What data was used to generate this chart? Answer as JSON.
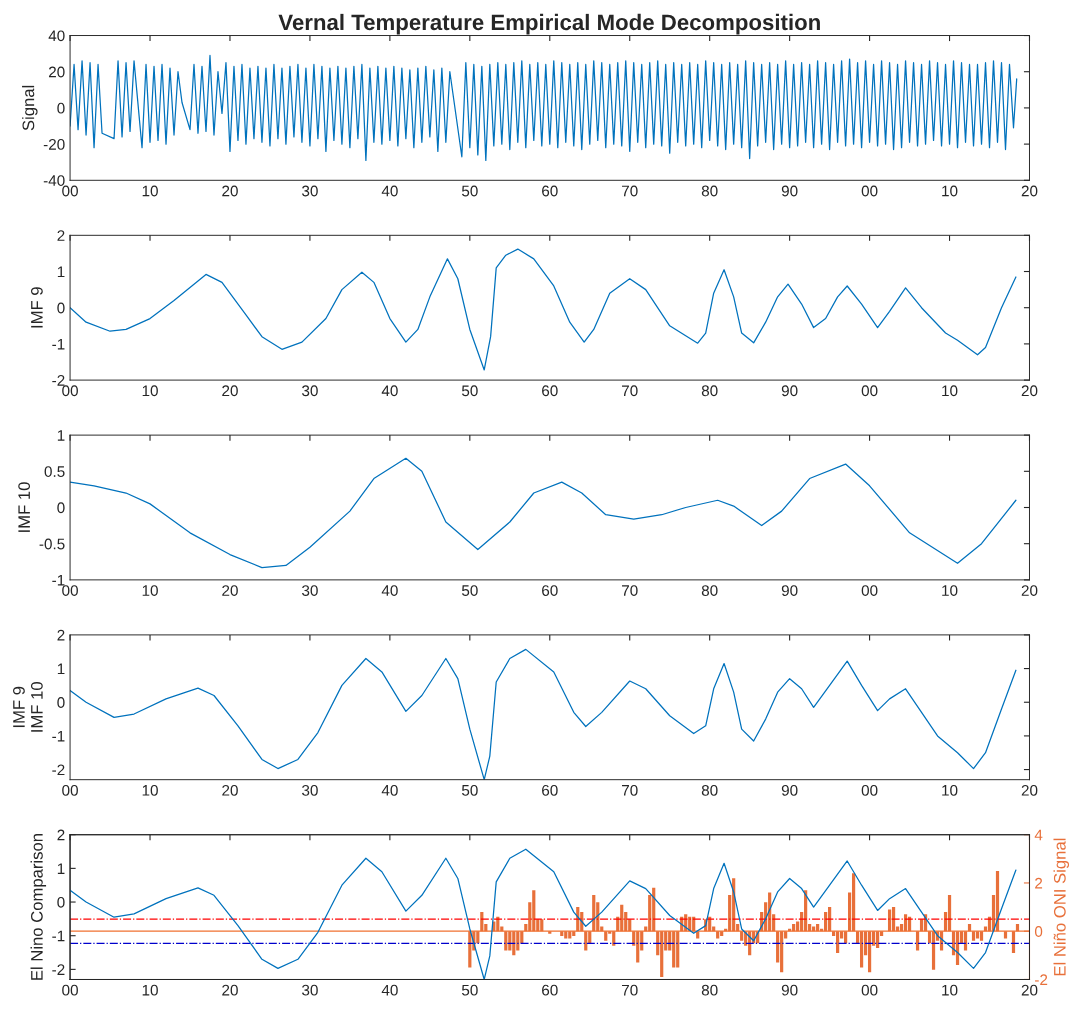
{
  "chart_data": [
    {
      "type": "line",
      "title": "Vernal Temperature Empirical Mode Decomposition",
      "ylabel": "Signal",
      "xlim": [
        1900,
        2020
      ],
      "xticks": [
        {
          "value": 1900,
          "label": "00"
        },
        {
          "value": 1910,
          "label": "10"
        },
        {
          "value": 1920,
          "label": "20"
        },
        {
          "value": 1930,
          "label": "30"
        },
        {
          "value": 1940,
          "label": "40"
        },
        {
          "value": 1950,
          "label": "50"
        },
        {
          "value": 1960,
          "label": "60"
        },
        {
          "value": 1970,
          "label": "70"
        },
        {
          "value": 1980,
          "label": "80"
        },
        {
          "value": 1990,
          "label": "90"
        },
        {
          "value": 2000,
          "label": "00"
        },
        {
          "value": 2010,
          "label": "10"
        },
        {
          "value": 2020,
          "label": "20"
        }
      ],
      "ylim": [
        -40,
        40
      ],
      "yticks": [
        -40,
        -20,
        0,
        20,
        40
      ],
      "series": [
        {
          "color": "#0072bd",
          "x": [
            1900,
            1900.5,
            1901,
            1901.5,
            1902,
            1902.5,
            1903,
            1903.5,
            1904,
            1905.5,
            1906,
            1906.5,
            1907,
            1907.5,
            1908,
            1909,
            1909.5,
            1910,
            1910.5,
            1911,
            1911.5,
            1912,
            1912.5,
            1913,
            1913.5,
            1914,
            1915,
            1915.5,
            1916,
            1916.5,
            1917,
            1917.5,
            1918,
            1918.5,
            1919,
            1919.5,
            1920,
            1920.5,
            1921,
            1921.5,
            1922,
            1922.5,
            1923,
            1923.5,
            1924,
            1924.5,
            1925,
            1925.5,
            1926,
            1926.5,
            1927,
            1927.5,
            1928,
            1928.5,
            1929,
            1929.5,
            1930,
            1930.5,
            1931,
            1931.5,
            1932,
            1932.5,
            1933,
            1933.5,
            1934,
            1934.5,
            1935,
            1935.5,
            1936,
            1936.5,
            1937,
            1937.5,
            1938,
            1938.5,
            1939,
            1939.5,
            1940,
            1940.5,
            1941,
            1941.5,
            1942,
            1942.5,
            1943,
            1943.5,
            1944,
            1944.5,
            1945,
            1945.5,
            1946,
            1946.5,
            1947,
            1947.5,
            1949,
            1949.5,
            1950,
            1950.5,
            1951,
            1951.5,
            1952,
            1952.5,
            1953,
            1953.5,
            1954,
            1954.5,
            1955,
            1955.5,
            1956,
            1956.5,
            1957,
            1957.5,
            1958,
            1958.5,
            1959,
            1959.5,
            1960,
            1960.5,
            1961,
            1961.5,
            1962,
            1962.5,
            1963,
            1963.5,
            1964,
            1964.5,
            1965,
            1965.5,
            1966,
            1966.5,
            1967,
            1967.5,
            1968,
            1968.5,
            1969,
            1969.5,
            1970,
            1970.5,
            1971,
            1971.5,
            1972,
            1972.5,
            1973,
            1973.5,
            1974,
            1974.5,
            1975,
            1975.5,
            1976,
            1976.5,
            1977,
            1977.5,
            1978,
            1978.5,
            1979,
            1979.5,
            1980,
            1980.5,
            1981,
            1981.5,
            1982,
            1982.5,
            1983,
            1983.5,
            1984,
            1984.5,
            1985,
            1985.5,
            1986,
            1986.5,
            1987,
            1987.5,
            1988,
            1988.5,
            1989,
            1989.5,
            1990,
            1990.5,
            1991,
            1991.5,
            1992,
            1992.5,
            1993,
            1993.5,
            1994,
            1994.5,
            1995,
            1995.5,
            1996,
            1996.5,
            1997,
            1997.5,
            1998,
            1998.5,
            1999,
            1999.5,
            2000,
            2000.5,
            2001,
            2001.5,
            2002,
            2002.5,
            2003,
            2003.5,
            2004,
            2004.5,
            2005,
            2005.5,
            2006,
            2006.5,
            2007,
            2007.5,
            2008,
            2008.5,
            2009,
            2009.5,
            2010,
            2010.5,
            2011,
            2011.5,
            2012,
            2012.5,
            2013,
            2013.5,
            2014,
            2014.5,
            2015,
            2015.5,
            2016,
            2016.5,
            2017,
            2017.5,
            2018,
            2018.4
          ],
          "values": [
            -10,
            24,
            -12,
            26,
            -15,
            25,
            -22,
            24,
            -14,
            -17,
            26,
            -16,
            25,
            -13,
            26,
            -22,
            24,
            -19,
            23,
            -18,
            24,
            -20,
            22,
            -15,
            20,
            3,
            -12,
            24,
            -14,
            23,
            -13,
            29,
            -15,
            20,
            -3,
            25,
            -24,
            23,
            -18,
            24,
            -20,
            22,
            -17,
            23,
            -19,
            22,
            -21,
            24,
            -17,
            22,
            -20,
            23,
            -16,
            24,
            -19,
            22,
            -21,
            24,
            -17,
            23,
            -24,
            22,
            -18,
            23,
            -20,
            22,
            -22,
            23,
            -17,
            24,
            -29,
            22,
            -19,
            23,
            -20,
            22,
            -18,
            23,
            -21,
            22,
            -17,
            21,
            -22,
            22,
            -19,
            23,
            -16,
            21,
            -24,
            22,
            -19,
            20,
            -27,
            25,
            -22,
            24,
            -26,
            23,
            -29,
            24,
            -21,
            25,
            -20,
            24,
            -23,
            25,
            -19,
            26,
            -22,
            24,
            -18,
            25,
            -21,
            24,
            -20,
            26,
            -22,
            25,
            -19,
            24,
            -21,
            25,
            -23,
            24,
            -20,
            26,
            -18,
            25,
            -22,
            24,
            -20,
            25,
            -21,
            26,
            -24,
            25,
            -19,
            24,
            -22,
            25,
            -20,
            26,
            -21,
            24,
            -25,
            25,
            -19,
            24,
            -21,
            25,
            -20,
            24,
            -22,
            26,
            -18,
            25,
            -21,
            24,
            -23,
            25,
            -20,
            24,
            -22,
            26,
            -28,
            25,
            -21,
            24,
            -19,
            25,
            -23,
            24,
            -20,
            26,
            -22,
            24,
            -21,
            25,
            -19,
            24,
            -22,
            26,
            -20,
            25,
            -23,
            24,
            -19,
            26,
            -21,
            27,
            -20,
            25,
            -22,
            26,
            -19,
            24,
            -21,
            26,
            -20,
            25,
            -23,
            24,
            -22,
            26,
            -19,
            25,
            -21,
            24,
            -20,
            26,
            -18,
            25,
            -21,
            24,
            -20,
            26,
            -22,
            25,
            -19,
            24,
            -21,
            24,
            -20,
            25,
            -22,
            26,
            -19,
            25,
            -23,
            24,
            -11,
            16
          ]
        }
      ]
    },
    {
      "type": "line",
      "ylabel": "IMF 9",
      "xlim": [
        1900,
        2020
      ],
      "xticks": [
        {
          "value": 1900,
          "label": "00"
        },
        {
          "value": 1910,
          "label": "10"
        },
        {
          "value": 1920,
          "label": "20"
        },
        {
          "value": 1930,
          "label": "30"
        },
        {
          "value": 1940,
          "label": "40"
        },
        {
          "value": 1950,
          "label": "50"
        },
        {
          "value": 1960,
          "label": "60"
        },
        {
          "value": 1970,
          "label": "70"
        },
        {
          "value": 1980,
          "label": "80"
        },
        {
          "value": 1990,
          "label": "90"
        },
        {
          "value": 2000,
          "label": "00"
        },
        {
          "value": 2010,
          "label": "10"
        },
        {
          "value": 2020,
          "label": "20"
        }
      ],
      "ylim": [
        -2,
        2
      ],
      "yticks": [
        -2,
        -1,
        0,
        1,
        2
      ],
      "series": [
        {
          "color": "#0072bd",
          "x": [
            1900,
            1902,
            1905,
            1907,
            1910,
            1913,
            1917,
            1919,
            1922,
            1924,
            1926.5,
            1929,
            1932,
            1934,
            1936.5,
            1938,
            1940,
            1942,
            1943.5,
            1945,
            1947.2,
            1948.5,
            1950,
            1951.8,
            1952.6,
            1953.3,
            1954.5,
            1956,
            1958,
            1960.5,
            1962.5,
            1964.3,
            1965.5,
            1967.5,
            1970,
            1972,
            1975,
            1978.5,
            1979.5,
            1980.5,
            1981.8,
            1983,
            1984,
            1985.5,
            1987,
            1988.5,
            1989.8,
            1991.5,
            1993,
            1994.5,
            1996,
            1997.2,
            1999,
            2001,
            2002.5,
            2004.5,
            2006.5,
            2009.5,
            2011,
            2013.5,
            2014.5,
            2016.5,
            2018.3
          ],
          "values": [
            0,
            -0.4,
            -0.65,
            -0.6,
            -0.3,
            0.2,
            0.92,
            0.7,
            -0.2,
            -0.8,
            -1.15,
            -0.95,
            -0.3,
            0.5,
            0.98,
            0.7,
            -0.3,
            -0.95,
            -0.6,
            0.3,
            1.35,
            0.8,
            -0.6,
            -1.72,
            -0.8,
            1.1,
            1.45,
            1.62,
            1.35,
            0.6,
            -0.4,
            -0.95,
            -0.6,
            0.4,
            0.8,
            0.5,
            -0.5,
            -0.98,
            -0.7,
            0.4,
            1.05,
            0.3,
            -0.7,
            -0.97,
            -0.4,
            0.3,
            0.65,
            0.1,
            -0.55,
            -0.3,
            0.3,
            0.6,
            0.1,
            -0.55,
            -0.1,
            0.55,
            0,
            -0.7,
            -0.9,
            -1.3,
            -1.1,
            0,
            0.85
          ]
        }
      ]
    },
    {
      "type": "line",
      "ylabel": "IMF 10",
      "xlim": [
        1900,
        2020
      ],
      "xticks": [
        {
          "value": 1900,
          "label": "00"
        },
        {
          "value": 1910,
          "label": "10"
        },
        {
          "value": 1920,
          "label": "20"
        },
        {
          "value": 1930,
          "label": "30"
        },
        {
          "value": 1940,
          "label": "40"
        },
        {
          "value": 1950,
          "label": "50"
        },
        {
          "value": 1960,
          "label": "60"
        },
        {
          "value": 1970,
          "label": "70"
        },
        {
          "value": 1980,
          "label": "80"
        },
        {
          "value": 1990,
          "label": "90"
        },
        {
          "value": 2000,
          "label": "00"
        },
        {
          "value": 2010,
          "label": "10"
        },
        {
          "value": 2020,
          "label": "20"
        }
      ],
      "ylim": [
        -1,
        1
      ],
      "yticks": [
        -1,
        -0.5,
        0,
        0.5,
        1
      ],
      "series": [
        {
          "color": "#0072bd",
          "x": [
            1900,
            1903,
            1907,
            1910,
            1915,
            1920,
            1924,
            1927,
            1930,
            1935,
            1938,
            1942,
            1944,
            1947,
            1951,
            1955,
            1958,
            1961.5,
            1964,
            1967,
            1970.5,
            1974,
            1977,
            1981,
            1983,
            1986.5,
            1989,
            1992.5,
            1997,
            2000,
            2005,
            2011,
            2014,
            2018.3
          ],
          "values": [
            0.35,
            0.3,
            0.2,
            0.05,
            -0.35,
            -0.65,
            -0.83,
            -0.8,
            -0.55,
            -0.05,
            0.4,
            0.68,
            0.5,
            -0.2,
            -0.58,
            -0.2,
            0.2,
            0.35,
            0.2,
            -0.1,
            -0.16,
            -0.1,
            0,
            0.1,
            0.02,
            -0.25,
            -0.05,
            0.4,
            0.6,
            0.3,
            -0.35,
            -0.77,
            -0.5,
            0.1
          ]
        }
      ]
    },
    {
      "type": "line",
      "ylabel": "IMF 9\nIMF 10",
      "xlim": [
        1900,
        2020
      ],
      "xticks": [
        {
          "value": 1900,
          "label": "00"
        },
        {
          "value": 1910,
          "label": "10"
        },
        {
          "value": 1920,
          "label": "20"
        },
        {
          "value": 1930,
          "label": "30"
        },
        {
          "value": 1940,
          "label": "40"
        },
        {
          "value": 1950,
          "label": "50"
        },
        {
          "value": 1960,
          "label": "60"
        },
        {
          "value": 1970,
          "label": "70"
        },
        {
          "value": 1980,
          "label": "80"
        },
        {
          "value": 1990,
          "label": "90"
        },
        {
          "value": 2000,
          "label": "00"
        },
        {
          "value": 2010,
          "label": "10"
        },
        {
          "value": 2020,
          "label": "20"
        }
      ],
      "ylim": [
        -2.3,
        2
      ],
      "yticks": [
        -2,
        -1,
        0,
        1,
        2
      ],
      "series": [
        {
          "color": "#0072bd",
          "x": [
            1900,
            1902,
            1905.5,
            1908,
            1912,
            1916,
            1918,
            1921,
            1924,
            1926,
            1928.5,
            1931,
            1934,
            1937,
            1939,
            1942,
            1944,
            1947,
            1948.5,
            1950,
            1951.8,
            1952.5,
            1953.3,
            1955,
            1957,
            1960.5,
            1963,
            1964.5,
            1966.5,
            1970,
            1972,
            1975,
            1978,
            1979.5,
            1980.5,
            1981.8,
            1983,
            1984,
            1985.5,
            1987,
            1988.5,
            1990,
            1991.5,
            1993,
            1995,
            1997.2,
            1999,
            2001,
            2002.5,
            2004.5,
            2006.5,
            2008.5,
            2011,
            2013,
            2014.5,
            2016.5,
            2018.3
          ],
          "values": [
            0.35,
            0,
            -0.45,
            -0.35,
            0.1,
            0.42,
            0.2,
            -0.7,
            -1.7,
            -1.97,
            -1.7,
            -0.9,
            0.5,
            1.3,
            0.9,
            -0.27,
            0.2,
            1.3,
            0.7,
            -0.8,
            -2.3,
            -1.6,
            0.6,
            1.3,
            1.57,
            0.9,
            -0.3,
            -0.72,
            -0.3,
            0.63,
            0.4,
            -0.4,
            -0.93,
            -0.7,
            0.4,
            1.15,
            0.3,
            -0.8,
            -1.15,
            -0.5,
            0.3,
            0.7,
            0.4,
            -0.15,
            0.5,
            1.22,
            0.5,
            -0.25,
            0.1,
            0.4,
            -0.3,
            -1.0,
            -1.5,
            -1.97,
            -1.5,
            -0.2,
            0.95
          ]
        }
      ]
    },
    {
      "type": "line",
      "ylabel": "El Nino Comparison",
      "y2label": "El Niño ONI Signal",
      "xlim": [
        1900,
        2020
      ],
      "xticks": [
        {
          "value": 1900,
          "label": "00"
        },
        {
          "value": 1910,
          "label": "10"
        },
        {
          "value": 1920,
          "label": "20"
        },
        {
          "value": 1930,
          "label": "30"
        },
        {
          "value": 1940,
          "label": "40"
        },
        {
          "value": 1950,
          "label": "50"
        },
        {
          "value": 1960,
          "label": "60"
        },
        {
          "value": 1970,
          "label": "70"
        },
        {
          "value": 1980,
          "label": "80"
        },
        {
          "value": 1990,
          "label": "90"
        },
        {
          "value": 2000,
          "label": "00"
        },
        {
          "value": 2010,
          "label": "10"
        },
        {
          "value": 2020,
          "label": "20"
        }
      ],
      "ylim": [
        -2.3,
        2
      ],
      "yticks": [
        -2,
        -1,
        0,
        1,
        2
      ],
      "y2lim": [
        -2,
        4
      ],
      "y2ticks": [
        -2,
        0,
        2,
        4
      ],
      "ref_lines": [
        {
          "axis": "y2",
          "value": 0.5,
          "color": "#ff0000",
          "line_style": "dashed"
        },
        {
          "axis": "y2",
          "value": 0,
          "color": "#f07030",
          "line_style": "solid"
        },
        {
          "axis": "y2",
          "value": -0.5,
          "color": "#0000cc",
          "line_style": "dashed"
        }
      ],
      "series": [
        {
          "color": "#0072bd",
          "x": [
            1900,
            1902,
            1905.5,
            1908,
            1912,
            1916,
            1918,
            1921,
            1924,
            1926,
            1928.5,
            1931,
            1934,
            1937,
            1939,
            1942,
            1944,
            1947,
            1948.5,
            1950,
            1951.8,
            1952.5,
            1953.3,
            1955,
            1957,
            1960.5,
            1963,
            1964.5,
            1966.5,
            1970,
            1972,
            1975,
            1978,
            1979.5,
            1980.5,
            1981.8,
            1983,
            1984,
            1985.5,
            1987,
            1988.5,
            1990,
            1991.5,
            1993,
            1995,
            1997.2,
            1999,
            2001,
            2002.5,
            2004.5,
            2006.5,
            2008.5,
            2011,
            2013,
            2014.5,
            2016.5,
            2018.3
          ],
          "values": [
            0.35,
            0,
            -0.45,
            -0.35,
            0.1,
            0.42,
            0.2,
            -0.7,
            -1.7,
            -1.97,
            -1.7,
            -0.9,
            0.5,
            1.3,
            0.9,
            -0.27,
            0.2,
            1.3,
            0.7,
            -0.8,
            -2.3,
            -1.6,
            0.6,
            1.3,
            1.57,
            0.9,
            -0.3,
            -0.72,
            -0.3,
            0.63,
            0.4,
            -0.4,
            -0.93,
            -0.7,
            0.4,
            1.15,
            0.3,
            -0.8,
            -1.15,
            -0.5,
            0.3,
            0.7,
            0.4,
            -0.15,
            0.5,
            1.22,
            0.5,
            -0.25,
            0.1,
            0.4,
            -0.3,
            -1.0,
            -1.5,
            -1.97,
            -1.5,
            -0.2,
            0.95
          ]
        },
        {
          "type": "bar",
          "axis": "y2",
          "color": "#e8703a",
          "x": [
            1950,
            1950.5,
            1951,
            1951.5,
            1952,
            1952.5,
            1953,
            1953.5,
            1954,
            1954.5,
            1955,
            1955.5,
            1956,
            1956.5,
            1957,
            1957.5,
            1958,
            1958.5,
            1959,
            1959.5,
            1960,
            1960.5,
            1961,
            1961.5,
            1962,
            1962.5,
            1963,
            1963.5,
            1964,
            1964.5,
            1965,
            1965.5,
            1966,
            1966.5,
            1967,
            1967.5,
            1968,
            1968.5,
            1969,
            1969.5,
            1970,
            1970.5,
            1971,
            1971.5,
            1972,
            1972.5,
            1973,
            1973.5,
            1974,
            1974.5,
            1975,
            1975.5,
            1976,
            1976.5,
            1977,
            1977.5,
            1978,
            1978.5,
            1979,
            1979.5,
            1980,
            1980.5,
            1981,
            1981.5,
            1982,
            1982.5,
            1983,
            1983.5,
            1984,
            1984.5,
            1985,
            1985.5,
            1986,
            1986.5,
            1987,
            1987.5,
            1988,
            1988.5,
            1989,
            1989.5,
            1990,
            1990.5,
            1991,
            1991.5,
            1992,
            1992.5,
            1993,
            1993.5,
            1994,
            1994.5,
            1995,
            1995.5,
            1996,
            1996.5,
            1997,
            1997.5,
            1998,
            1998.5,
            1999,
            1999.5,
            2000,
            2000.5,
            2001,
            2001.5,
            2002,
            2002.5,
            2003,
            2003.5,
            2004,
            2004.5,
            2005,
            2005.5,
            2006,
            2006.5,
            2007,
            2007.5,
            2008,
            2008.5,
            2009,
            2009.5,
            2010,
            2010.5,
            2011,
            2011.5,
            2012,
            2012.5,
            2013,
            2013.5,
            2014,
            2014.5,
            2015,
            2015.5,
            2016,
            2016.5,
            2017,
            2017.5,
            2018,
            2018.5
          ],
          "values": [
            -1.5,
            -0.8,
            -0.5,
            0.8,
            0.3,
            0,
            0.4,
            0.6,
            0.2,
            -0.8,
            -0.8,
            -1,
            -0.8,
            -0.5,
            0.3,
            1.2,
            1.7,
            0.5,
            0.5,
            0,
            -0.1,
            0,
            0,
            -0.2,
            -0.3,
            -0.3,
            -0.2,
            1,
            0.8,
            -0.8,
            -0.5,
            1.5,
            1.2,
            0.2,
            -0.4,
            -0.1,
            -0.6,
            0.6,
            1.1,
            0.8,
            0.5,
            -0.6,
            -1.3,
            -0.8,
            0.2,
            1.5,
            1.8,
            -1,
            -1.9,
            -0.8,
            -0.8,
            -1.5,
            -1.5,
            0.6,
            0.7,
            0.6,
            0.6,
            -0.3,
            0,
            0.5,
            0.6,
            0.2,
            -0.3,
            -0.2,
            0.1,
            1.5,
            2.2,
            0.3,
            -0.4,
            -0.6,
            -1,
            -0.5,
            -0.5,
            0.8,
            1.2,
            1.6,
            0.7,
            -1.3,
            -1.7,
            -0.3,
            0.1,
            0.3,
            0.4,
            0.8,
            1.7,
            0.3,
            0.2,
            0.3,
            0.1,
            0.8,
            1,
            -0.2,
            -0.9,
            -0.3,
            -0.5,
            1.6,
            2.4,
            -0.5,
            -1.5,
            -1,
            -1.7,
            -0.6,
            -0.7,
            -0.2,
            0,
            0.9,
            1,
            0.2,
            0.3,
            0.7,
            0.6,
            0,
            -0.8,
            0.5,
            0.7,
            -0.5,
            -1.6,
            -0.4,
            -0.8,
            0.8,
            1.5,
            -1,
            -1.4,
            -0.5,
            -0.8,
            0.3,
            -0.4,
            -0.3,
            -0.4,
            0.2,
            0.6,
            1.5,
            2.5,
            0,
            -0.3,
            0,
            -0.9,
            0.3
          ]
        }
      ]
    }
  ]
}
